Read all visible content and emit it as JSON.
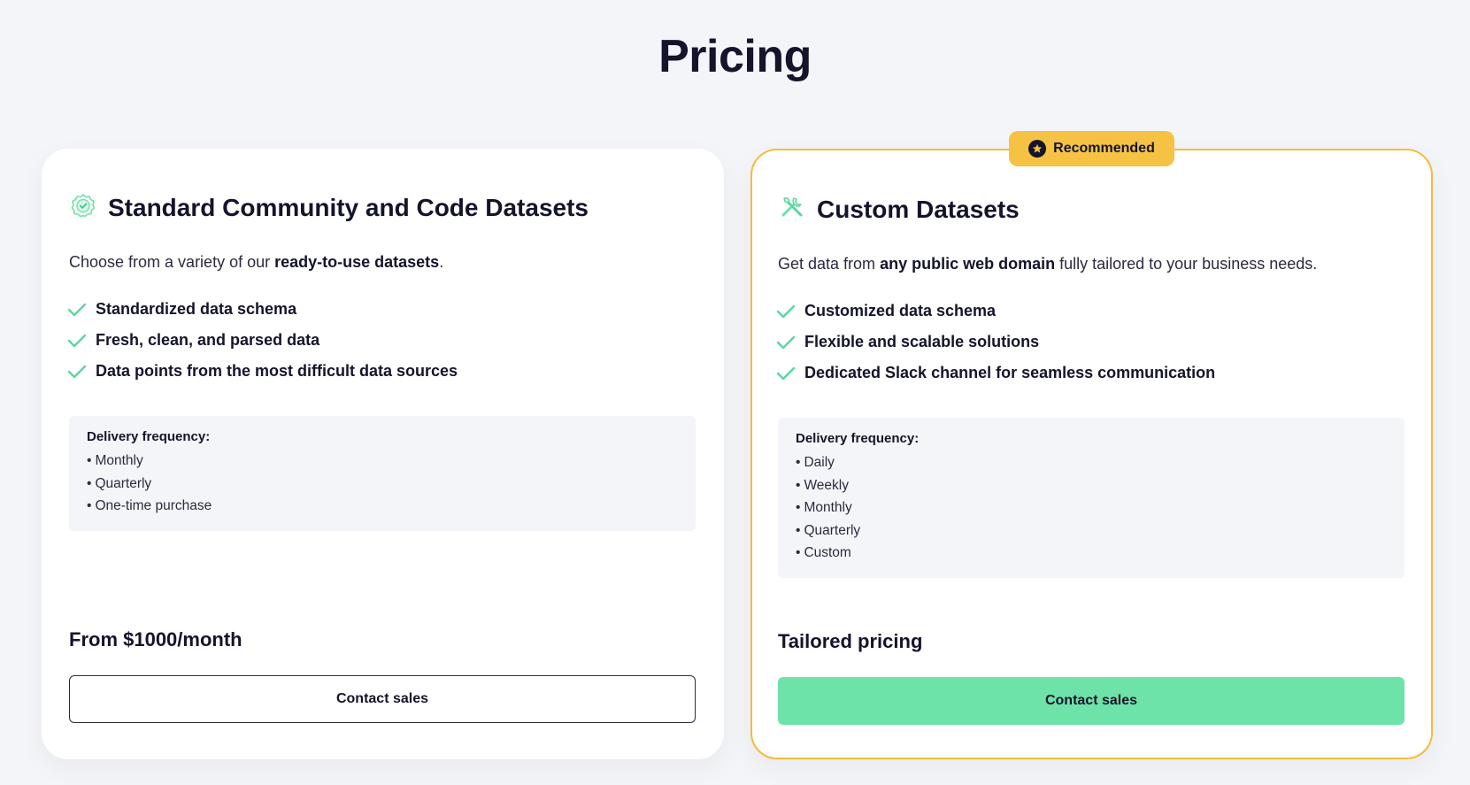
{
  "page": {
    "title": "Pricing"
  },
  "colors": {
    "accent_green": "#6de3aa",
    "check_green": "#5bd6a0",
    "recommended_yellow": "#f6c244",
    "text_dark": "#14142b"
  },
  "plans": [
    {
      "icon": "badge-check-icon",
      "title": "Standard Community and Code Datasets",
      "desc_pre": "Choose from a variety of our ",
      "desc_bold": "ready-to-use datasets",
      "desc_post": ".",
      "features": [
        "Standardized data schema",
        "Fresh, clean, and parsed data",
        "Data points from the most difficult data sources"
      ],
      "delivery_title": "Delivery frequency:",
      "delivery": [
        "Monthly",
        "Quarterly",
        "One-time purchase"
      ],
      "price": "From $1000/month",
      "cta": "Contact sales"
    },
    {
      "badge": "Recommended",
      "icon": "tools-icon",
      "title": "Custom Datasets",
      "desc_pre": "Get data from ",
      "desc_bold": "any public web domain",
      "desc_post": " fully tailored to your business needs.",
      "features": [
        "Customized data schema",
        "Flexible and scalable solutions",
        "Dedicated Slack channel for seamless communication"
      ],
      "delivery_title": "Delivery frequency:",
      "delivery": [
        "Daily",
        "Weekly",
        "Monthly",
        "Quarterly",
        "Custom"
      ],
      "price": "Tailored pricing",
      "cta": "Contact sales"
    }
  ]
}
